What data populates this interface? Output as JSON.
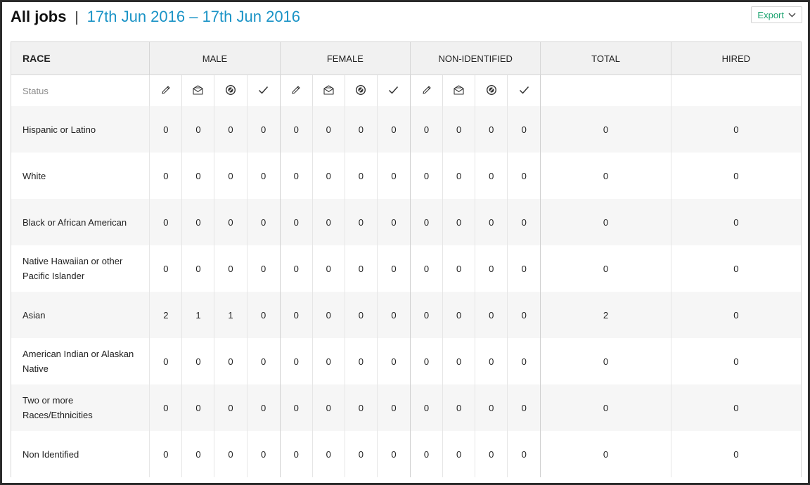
{
  "header": {
    "title": "All jobs",
    "separator": "|",
    "date_range": "17th Jun 2016 – 17th Jun 2016",
    "export_label": "Export"
  },
  "table": {
    "col_headers": {
      "race": "RACE",
      "male": "MALE",
      "female": "FEMALE",
      "non_identified": "NON-IDENTIFIED",
      "total": "TOTAL",
      "hired": "HIRED"
    },
    "status_label": "Status",
    "status_icons": [
      "pencil-icon",
      "envelope-icon",
      "blocked-icon",
      "checkmark-icon"
    ],
    "rows": [
      {
        "race": "Hispanic or Latino",
        "male": [
          "0",
          "0",
          "0",
          "0"
        ],
        "female": [
          "0",
          "0",
          "0",
          "0"
        ],
        "non_identified": [
          "0",
          "0",
          "0",
          "0"
        ],
        "total": "0",
        "hired": "0"
      },
      {
        "race": "White",
        "male": [
          "0",
          "0",
          "0",
          "0"
        ],
        "female": [
          "0",
          "0",
          "0",
          "0"
        ],
        "non_identified": [
          "0",
          "0",
          "0",
          "0"
        ],
        "total": "0",
        "hired": "0"
      },
      {
        "race": "Black or African American",
        "male": [
          "0",
          "0",
          "0",
          "0"
        ],
        "female": [
          "0",
          "0",
          "0",
          "0"
        ],
        "non_identified": [
          "0",
          "0",
          "0",
          "0"
        ],
        "total": "0",
        "hired": "0"
      },
      {
        "race": "Native Hawaiian or other Pacific Islander",
        "male": [
          "0",
          "0",
          "0",
          "0"
        ],
        "female": [
          "0",
          "0",
          "0",
          "0"
        ],
        "non_identified": [
          "0",
          "0",
          "0",
          "0"
        ],
        "total": "0",
        "hired": "0"
      },
      {
        "race": "Asian",
        "male": [
          "2",
          "1",
          "1",
          "0"
        ],
        "female": [
          "0",
          "0",
          "0",
          "0"
        ],
        "non_identified": [
          "0",
          "0",
          "0",
          "0"
        ],
        "total": "2",
        "hired": "0"
      },
      {
        "race": "American Indian or Alaskan Native",
        "male": [
          "0",
          "0",
          "0",
          "0"
        ],
        "female": [
          "0",
          "0",
          "0",
          "0"
        ],
        "non_identified": [
          "0",
          "0",
          "0",
          "0"
        ],
        "total": "0",
        "hired": "0"
      },
      {
        "race": "Two or more Races/Ethnicities",
        "male": [
          "0",
          "0",
          "0",
          "0"
        ],
        "female": [
          "0",
          "0",
          "0",
          "0"
        ],
        "non_identified": [
          "0",
          "0",
          "0",
          "0"
        ],
        "total": "0",
        "hired": "0"
      },
      {
        "race": "Non Identified",
        "male": [
          "0",
          "0",
          "0",
          "0"
        ],
        "female": [
          "0",
          "0",
          "0",
          "0"
        ],
        "non_identified": [
          "0",
          "0",
          "0",
          "0"
        ],
        "total": "0",
        "hired": "0"
      }
    ]
  },
  "colors": {
    "accent_date": "#1a93c6",
    "export_text": "#1aa36f",
    "header_bg": "#f1f1f1",
    "row_shade": "#f6f6f6"
  }
}
